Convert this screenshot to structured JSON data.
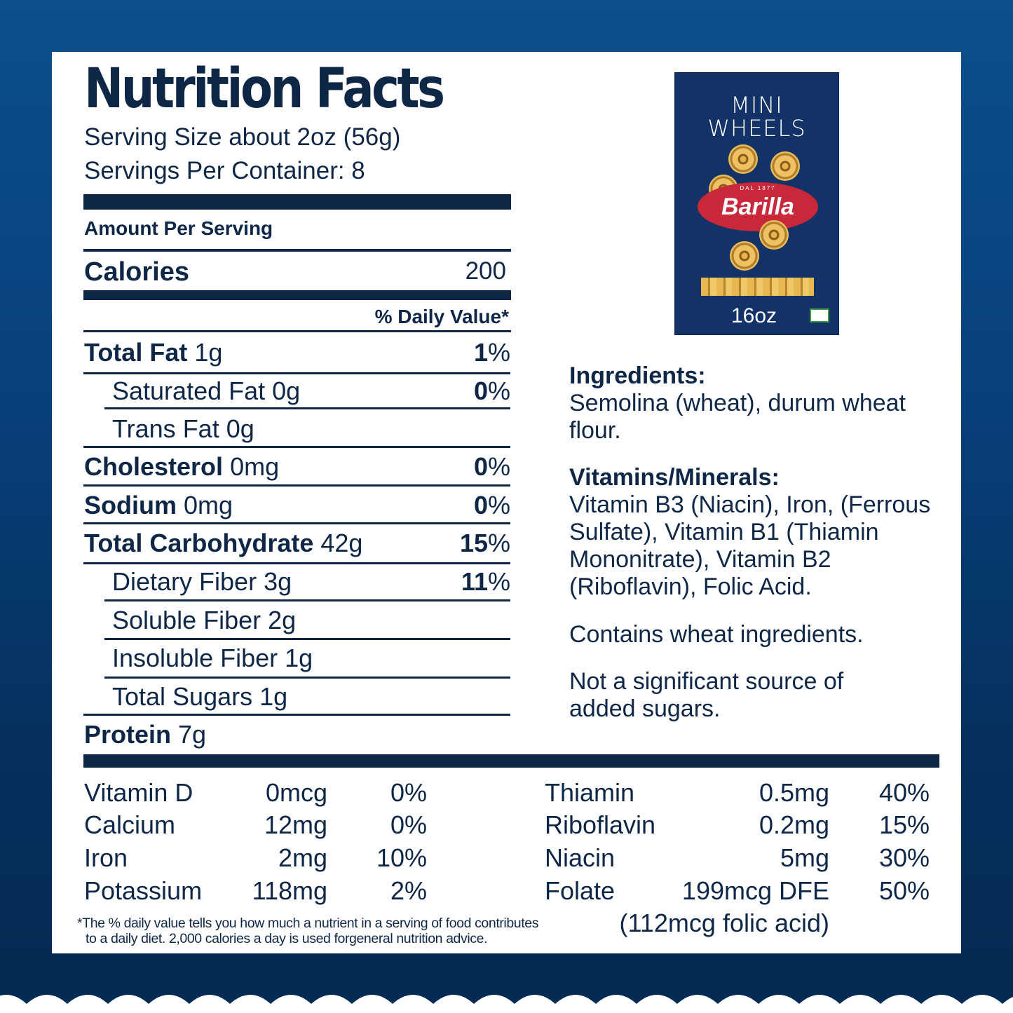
{
  "label": {
    "title": "Nutrition Facts",
    "serving_size": "Serving Size about 2oz (56g)",
    "servings_per_container": "Servings Per Container: 8",
    "amount_per_serving": "Amount Per Serving",
    "calories_label": "Calories",
    "calories_value": "200",
    "daily_value_header": "% Daily Value*",
    "rows": [
      {
        "name": "Total Fat",
        "amount": "1g",
        "dv": "1",
        "bold": true
      },
      {
        "name": "Saturated Fat",
        "amount": "0g",
        "dv": "0"
      },
      {
        "name": "Trans Fat",
        "amount": "0g",
        "dv": ""
      },
      {
        "name": "Cholesterol",
        "amount": "0mg",
        "dv": "0",
        "bold": true
      },
      {
        "name": "Sodium",
        "amount": "0mg",
        "dv": "0",
        "bold": true
      },
      {
        "name": "Total Carbohydrate",
        "amount": "42g",
        "dv": "15",
        "bold": true
      },
      {
        "name": "Dietary Fiber",
        "amount": "3g",
        "dv": "11"
      },
      {
        "name": "Soluble Fiber",
        "amount": "2g",
        "dv": ""
      },
      {
        "name": "Insoluble Fiber",
        "amount": "1g",
        "dv": ""
      },
      {
        "name": "Total Sugars",
        "amount": "1g",
        "dv": ""
      },
      {
        "name": "Protein",
        "amount": "7g",
        "dv": "",
        "bold": true
      }
    ],
    "percent_sign": "%"
  },
  "vitamins_left": [
    {
      "name": "Vitamin D",
      "amount": "0mcg",
      "dv": "0%"
    },
    {
      "name": "Calcium",
      "amount": "12mg",
      "dv": "0%"
    },
    {
      "name": "Iron",
      "amount": "2mg",
      "dv": "10%"
    },
    {
      "name": "Potassium",
      "amount": "118mg",
      "dv": "2%"
    }
  ],
  "vitamins_right": [
    {
      "name": "Thiamin",
      "amount": "0.5mg",
      "dv": "40%"
    },
    {
      "name": "Riboflavin",
      "amount": "0.2mg",
      "dv": "15%"
    },
    {
      "name": "Niacin",
      "amount": "5mg",
      "dv": "30%"
    },
    {
      "name": "Folate",
      "amount": "199mcg DFE",
      "dv": "50%"
    }
  ],
  "folic_acid_note": "(112mcg folic acid)",
  "footnote": [
    "*The % daily value tells you how much a nutrient in a serving of food contributes",
    "to a daily diet. 2,000 calories a day is used forgeneral nutrition advice."
  ],
  "ingredients": {
    "heading": "Ingredients:",
    "text": "Semolina (wheat), durum wheat flour."
  },
  "vitamins_minerals": {
    "heading": "Vitamins/Minerals:",
    "text": "Vitamin B3 (Niacin), Iron, (Ferrous Sulfate), Vitamin B1 (Thiamin Mononitrate), Vitamin B2 (Riboflavin), Folic Acid."
  },
  "allergen": "Contains wheat ingredients.",
  "sugar_note": "Not a significant source of added sugars.",
  "product": {
    "name_line1": "MINI",
    "name_line2": "WHEELS",
    "brand": "Barilla",
    "tagline": "DAL 1877",
    "weight": "16oz",
    "box_color": "#123268",
    "oval_color": "#c8283a"
  },
  "colors": {
    "text": "#0f2747",
    "background": "#08407a"
  }
}
